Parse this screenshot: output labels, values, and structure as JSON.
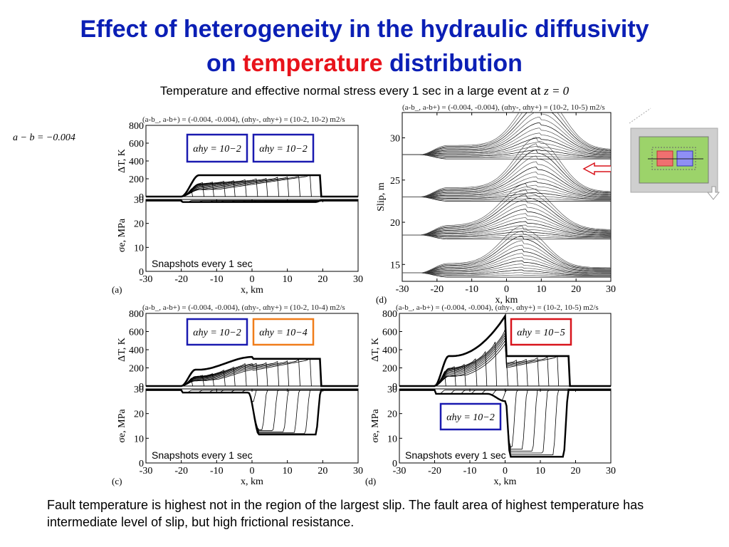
{
  "slide": {
    "title_line1": "Effect of heterogeneity in the hydraulic diffusivity",
    "title_line2_part1": "on ",
    "title_line2_red": "temperature",
    "title_line2_part2": " distribution",
    "subtitle": "Temperature and effective normal stress every 1 sec in a large event at ",
    "subtitle_var": "z = 0",
    "left_label": "a − b = −0.004",
    "footer": "Fault temperature is highest not in the region of the largest slip. The fault area of highest temperature has intermediate level of slip, but high frictional resistance.",
    "colors": {
      "title": "#0b1fb5",
      "highlight": "#e8131b",
      "box_blue": "#1a1ab0",
      "box_orange": "#f07d1a",
      "box_red": "#d8141c",
      "inset_bg": "#9cd36a"
    }
  },
  "chart_data": [
    {
      "panel": "(a)",
      "type": "line",
      "header": "(a-b_, a-b+) = (-0.004, -0.004), (αhy-, αhy+) = (10-2, 10-2) m2/s",
      "xlabel": "x, km",
      "ylabel_top": "ΔT, K",
      "ylabel_bottom": "σe, MPa",
      "xlim": [
        -30,
        30
      ],
      "ylim_top": [
        0,
        800
      ],
      "ylim_bottom": [
        0,
        30
      ],
      "xticks": [
        "-30",
        "-20",
        "-10",
        "0",
        "10",
        "20",
        "30"
      ],
      "yticks_top": [
        "0",
        "200",
        "400",
        "600",
        "800"
      ],
      "yticks_bottom": [
        "0",
        "10",
        "20",
        "30"
      ],
      "annotation": "Snapshots every 1 sec",
      "boxes": [
        {
          "label": "αhy = 10−2",
          "color": "blue"
        },
        {
          "label": "αhy = 10−2",
          "color": "blue"
        }
      ],
      "envelope_top": {
        "x": [
          -20,
          -19,
          -15,
          0,
          10,
          19,
          19.5
        ],
        "y": [
          0,
          100,
          240,
          240,
          240,
          240,
          0
        ]
      },
      "envelope_bottom": {
        "x": [
          -20,
          -15,
          19
        ],
        "y": [
          30,
          29,
          29
        ]
      }
    },
    {
      "panel": "(d)",
      "type": "line",
      "header": "(a-b_, a-b+) = (-0.004, -0.004), (αhy-, αhy+) = (10-2, 10-5) m2/s",
      "xlabel": "x, km",
      "ylabel": "Slip, m",
      "xlim": [
        -30,
        30
      ],
      "ylim": [
        13,
        33
      ],
      "xticks": [
        "-30",
        "-20",
        "-10",
        "0",
        "10",
        "20",
        "30"
      ],
      "yticks": [
        "15",
        "20",
        "25",
        "30"
      ]
    },
    {
      "panel": "(c)",
      "type": "line",
      "header": "(a-b_, a-b+) = (-0.004, -0.004), (αhy-, αhy+) = (10-2, 10-4) m2/s",
      "xlabel": "x, km",
      "ylabel_top": "ΔT, K",
      "ylabel_bottom": "σe, MPa",
      "xlim": [
        -30,
        30
      ],
      "ylim_top": [
        0,
        800
      ],
      "ylim_bottom": [
        0,
        30
      ],
      "xticks": [
        "-30",
        "-20",
        "-10",
        "0",
        "10",
        "20",
        "30"
      ],
      "yticks_top": [
        "0",
        "200",
        "400",
        "600",
        "800"
      ],
      "yticks_bottom": [
        "0",
        "10",
        "20",
        "30"
      ],
      "annotation": "Snapshots every 1 sec",
      "boxes": [
        {
          "label": "αhy = 10−2",
          "color": "blue"
        },
        {
          "label": "αhy = 10−4",
          "color": "orange"
        }
      ],
      "envelope_top": {
        "x": [
          -20,
          -15,
          -5,
          -2,
          0,
          2,
          10,
          19,
          19.5
        ],
        "y": [
          0,
          180,
          300,
          350,
          320,
          300,
          300,
          300,
          0
        ]
      },
      "envelope_bottom": {
        "x": [
          -20,
          -2,
          0,
          2,
          19
        ],
        "y": [
          30,
          29,
          22,
          12,
          10
        ]
      }
    },
    {
      "panel": "(d)",
      "type": "line",
      "header": "(a-b_, a-b+) = (-0.004, -0.004), (αhy-, αhy+) = (10-2, 10-5) m2/s",
      "xlabel": "x, km",
      "ylabel_top": "ΔT, K",
      "ylabel_bottom": "σe, MPa",
      "xlim": [
        -30,
        30
      ],
      "ylim_top": [
        0,
        800
      ],
      "ylim_bottom": [
        0,
        30
      ],
      "xticks": [
        "-30",
        "-20",
        "-10",
        "0",
        "10",
        "20",
        "30"
      ],
      "yticks_top": [
        "0",
        "200",
        "400",
        "600",
        "800"
      ],
      "yticks_bottom": [
        "0",
        "10",
        "20",
        "30"
      ],
      "annotation": "Snapshots every 1 sec",
      "boxes": [
        {
          "label": "αhy = 10−5",
          "color": "red"
        },
        {
          "label": "αhy = 10−2",
          "color": "blue"
        }
      ],
      "envelope_top": {
        "x": [
          -20,
          -15,
          -5,
          -1,
          0,
          1,
          10,
          18,
          18.5
        ],
        "y": [
          0,
          330,
          560,
          780,
          700,
          330,
          330,
          300,
          0
        ]
      },
      "envelope_bottom": {
        "x": [
          -20,
          -5,
          0,
          1,
          18
        ],
        "y": [
          30,
          28,
          24,
          3,
          1
        ]
      }
    }
  ]
}
